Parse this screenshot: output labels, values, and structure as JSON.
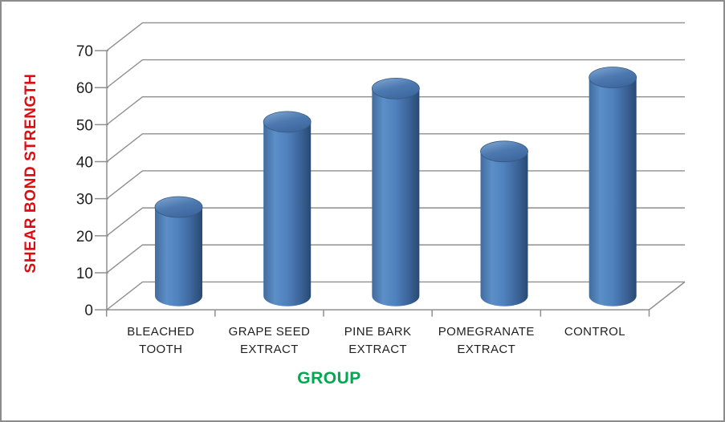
{
  "chart_data": {
    "type": "bar",
    "subtype": "3d-cylinder",
    "title": "",
    "xlabel": "GROUP",
    "ylabel": "SHEAR BOND STRENGTH",
    "categories": [
      "BLEACHED TOOTH",
      "GRAPE SEED EXTRACT",
      "PINE BARK EXTRACT",
      "POMEGRANATE EXTRACT",
      "CONTROL"
    ],
    "category_lines": [
      [
        "BLEACHED",
        "TOOTH"
      ],
      [
        "GRAPE SEED",
        "EXTRACT"
      ],
      [
        "PINE BARK",
        "EXTRACT"
      ],
      [
        "POMEGRANATE",
        "EXTRACT"
      ],
      [
        "CONTROL"
      ]
    ],
    "values": [
      24,
      47,
      56,
      39,
      59
    ],
    "ylim": [
      0,
      70
    ],
    "ytick_step": 10,
    "yticks": [
      0,
      10,
      20,
      30,
      40,
      50,
      60,
      70
    ],
    "grid": true,
    "legend": "none",
    "colors": {
      "bar_body_stops": [
        "#426C9E",
        "#5C8EC8",
        "#4F81BD",
        "#3A6195",
        "#284A72"
      ],
      "bar_top_stops": [
        "#85AAD5",
        "#4C79B0",
        "#3F68A0"
      ],
      "bar_top_edge": "#35597F",
      "gridline": "#8F8F8F",
      "axis": "#8F8F8F",
      "tick_text": "#1F1F1F",
      "ylabel_color": "#E00B10",
      "xlabel_color": "#00A84F",
      "frame_border": "#8C8C8C",
      "background": "#FFFFFF"
    }
  }
}
